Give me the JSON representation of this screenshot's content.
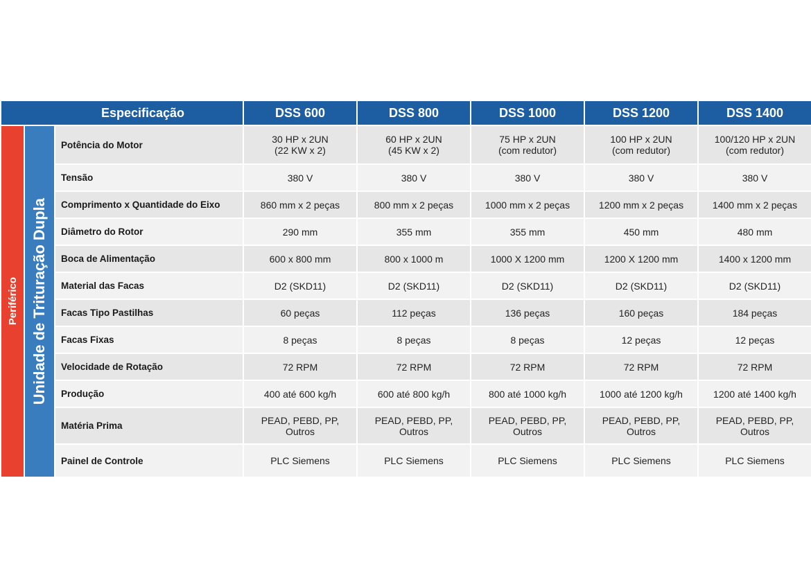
{
  "header": {
    "spec_label": "Especificação",
    "models": [
      "DSS 600",
      "DSS 800",
      "DSS 1000",
      "DSS 1200",
      "DSS 1400"
    ]
  },
  "side": {
    "category": "Periférico",
    "unit": "Unidade de Trituração Dupla"
  },
  "rows": [
    {
      "label": "Potência do Motor",
      "values": [
        "30 HP x 2UN\n(22 KW x 2)",
        "60 HP x 2UN\n(45 KW x 2)",
        "75 HP x 2UN\n(com redutor)",
        "100 HP x 2UN\n(com redutor)",
        "100/120 HP x 2UN\n(com redutor)"
      ]
    },
    {
      "label": "Tensão",
      "values": [
        "380 V",
        "380 V",
        "380 V",
        "380 V",
        "380 V"
      ]
    },
    {
      "label": "Comprimento x Quantidade do Eixo",
      "values": [
        "860 mm x 2 peças",
        "800 mm x 2 peças",
        "1000 mm x 2 peças",
        "1200 mm x 2 peças",
        "1400 mm x 2 peças"
      ]
    },
    {
      "label": "Diâmetro do Rotor",
      "values": [
        "290 mm",
        "355 mm",
        "355 mm",
        "450 mm",
        "480 mm"
      ]
    },
    {
      "label": "Boca de Alimentação",
      "values": [
        "600 x 800 mm",
        "800 x 1000 m",
        "1000 X 1200 mm",
        "1200 X 1200 mm",
        "1400 x 1200 mm"
      ]
    },
    {
      "label": "Material das Facas",
      "values": [
        "D2 (SKD11)",
        "D2 (SKD11)",
        "D2 (SKD11)",
        "D2 (SKD11)",
        "D2 (SKD11)"
      ]
    },
    {
      "label": "Facas Tipo Pastilhas",
      "values": [
        "60 peças",
        "112 peças",
        "136 peças",
        "160 peças",
        "184 peças"
      ]
    },
    {
      "label": "Facas Fixas",
      "values": [
        "8 peças",
        "8 peças",
        "8 peças",
        "12 peças",
        "12 peças"
      ]
    },
    {
      "label": "Velocidade de Rotação",
      "values": [
        "72 RPM",
        "72 RPM",
        "72 RPM",
        "72 RPM",
        "72 RPM"
      ]
    },
    {
      "label": "Produção",
      "values": [
        "400 até 600 kg/h",
        "600 até 800 kg/h",
        "800 até 1000 kg/h",
        "1000 até 1200 kg/h",
        "1200 até 1400 kg/h"
      ]
    },
    {
      "label": "Matéria Prima",
      "values": [
        "PEAD, PEBD, PP,\nOutros",
        "PEAD, PEBD, PP,\nOutros",
        "PEAD, PEBD, PP,\nOutros",
        "PEAD, PEBD, PP,\nOutros",
        "PEAD, PEBD, PP,\nOutros"
      ]
    },
    {
      "label": "Painel de Controle",
      "values": [
        "PLC Siemens",
        "PLC Siemens",
        "PLC Siemens",
        "PLC Siemens",
        "PLC Siemens"
      ]
    }
  ],
  "colors": {
    "header_blue": "#1d5ea3",
    "side_red": "#e8412f",
    "side_blue": "#3a7dbf",
    "cell_gray": "#e6e6e6",
    "cell_light": "#f2f2f2"
  }
}
